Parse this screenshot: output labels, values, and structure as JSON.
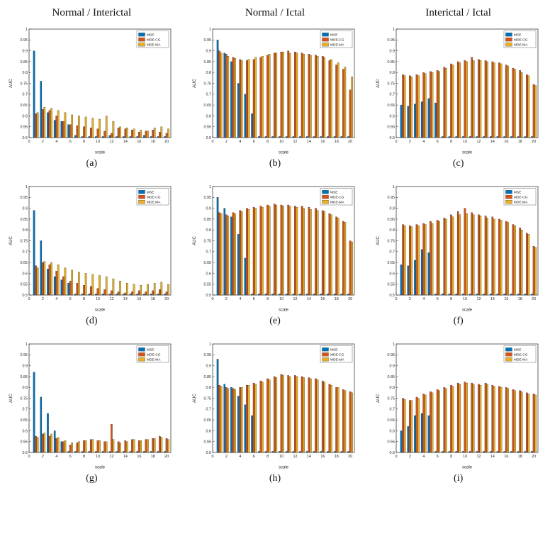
{
  "figure": {
    "column_titles": [
      "Normal / Interictal",
      "Normal / Ictal",
      "Interictal / Ictal"
    ],
    "subplot_labels": [
      "(a)",
      "(b)",
      "(c)",
      "(d)",
      "(e)",
      "(f)",
      "(g)",
      "(h)",
      "(i)"
    ]
  },
  "colors": {
    "mse": "#0072BD",
    "mde_cg": "#D95319",
    "mde_ma": "#EDB120",
    "axis": "#262626"
  },
  "legend_labels": [
    "MSE",
    "MDE-CG",
    "MDE-MA"
  ],
  "chart_data": [
    {
      "id": "a",
      "type": "bar",
      "title": "Normal / Interictal",
      "xlabel": "scale",
      "ylabel": "AUC",
      "xlim": [
        0,
        20.6
      ],
      "ylim": [
        0.5,
        1
      ],
      "grid": false,
      "legend_position": "top-right",
      "x": [
        1,
        2,
        3,
        4,
        5,
        6,
        7,
        8,
        9,
        10,
        11,
        12,
        13,
        14,
        15,
        16,
        17,
        18,
        19,
        20
      ],
      "legend": [
        "MSE",
        "MDE-CG",
        "MDE-MA"
      ],
      "series": [
        {
          "name": "MSE",
          "values": [
            0.9,
            0.76,
            0.615,
            0.58,
            0.575,
            0.56,
            0.51,
            0.505,
            0.505,
            0.505,
            0.505,
            0.51,
            0.505,
            0.505,
            0.505,
            0.505,
            0.51,
            0.505,
            0.505,
            0.505
          ]
        },
        {
          "name": "MDE-CG",
          "values": [
            0.61,
            0.63,
            0.625,
            0.6,
            0.575,
            0.56,
            0.555,
            0.55,
            0.545,
            0.54,
            0.53,
            0.52,
            0.545,
            0.54,
            0.535,
            0.525,
            0.53,
            0.535,
            0.525,
            0.52
          ]
        },
        {
          "name": "MDE-MA",
          "values": [
            0.615,
            0.64,
            0.635,
            0.625,
            0.615,
            0.605,
            0.6,
            0.595,
            0.59,
            0.585,
            0.6,
            0.575,
            0.55,
            0.545,
            0.54,
            0.535,
            0.53,
            0.545,
            0.55,
            0.54
          ]
        }
      ]
    },
    {
      "id": "b",
      "type": "bar",
      "title": "Normal / Ictal",
      "xlabel": "scale",
      "ylabel": "AUC",
      "xlim": [
        0,
        20.6
      ],
      "ylim": [
        0.5,
        1
      ],
      "grid": false,
      "legend_position": "top-right",
      "x": [
        1,
        2,
        3,
        4,
        5,
        6,
        7,
        8,
        9,
        10,
        11,
        12,
        13,
        14,
        15,
        16,
        17,
        18,
        19,
        20
      ],
      "legend": [
        "MSE",
        "MDE-CG",
        "MDE-MA"
      ],
      "series": [
        {
          "name": "MSE",
          "values": [
            0.95,
            0.89,
            0.85,
            0.75,
            0.7,
            0.61,
            0.505,
            0.505,
            0.505,
            0.505,
            0.505,
            0.505,
            0.505,
            0.505,
            0.505,
            0.505,
            0.505,
            0.505,
            0.505,
            0.505
          ]
        },
        {
          "name": "MDE-CG",
          "values": [
            0.9,
            0.885,
            0.87,
            0.86,
            0.855,
            0.86,
            0.87,
            0.88,
            0.89,
            0.895,
            0.9,
            0.895,
            0.89,
            0.885,
            0.88,
            0.875,
            0.855,
            0.835,
            0.815,
            0.72
          ]
        },
        {
          "name": "MDE-MA",
          "values": [
            0.89,
            0.875,
            0.865,
            0.855,
            0.86,
            0.87,
            0.875,
            0.885,
            0.89,
            0.895,
            0.89,
            0.89,
            0.885,
            0.88,
            0.875,
            0.87,
            0.86,
            0.845,
            0.825,
            0.78
          ]
        }
      ]
    },
    {
      "id": "c",
      "type": "bar",
      "title": "Interictal / Ictal",
      "xlabel": "scale",
      "ylabel": "AUC",
      "xlim": [
        0,
        20.6
      ],
      "ylim": [
        0.5,
        1
      ],
      "grid": false,
      "legend_position": "top-right",
      "x": [
        1,
        2,
        3,
        4,
        5,
        6,
        7,
        8,
        9,
        10,
        11,
        12,
        13,
        14,
        15,
        16,
        17,
        18,
        19,
        20
      ],
      "legend": [
        "MSE",
        "MDE-CG",
        "MDE-MA"
      ],
      "series": [
        {
          "name": "MSE",
          "values": [
            0.65,
            0.645,
            0.655,
            0.665,
            0.68,
            0.66,
            0.505,
            0.505,
            0.505,
            0.505,
            0.505,
            0.505,
            0.505,
            0.505,
            0.505,
            0.505,
            0.505,
            0.505,
            0.505,
            0.505
          ]
        },
        {
          "name": "MDE-CG",
          "values": [
            0.79,
            0.785,
            0.79,
            0.8,
            0.805,
            0.81,
            0.825,
            0.84,
            0.85,
            0.855,
            0.87,
            0.86,
            0.855,
            0.85,
            0.845,
            0.835,
            0.82,
            0.81,
            0.79,
            0.745
          ]
        },
        {
          "name": "MDE-MA",
          "values": [
            0.785,
            0.78,
            0.785,
            0.795,
            0.8,
            0.805,
            0.82,
            0.835,
            0.845,
            0.85,
            0.855,
            0.855,
            0.85,
            0.845,
            0.84,
            0.83,
            0.815,
            0.8,
            0.785,
            0.74
          ]
        }
      ]
    },
    {
      "id": "d",
      "type": "bar",
      "title": "Normal / Interictal",
      "xlabel": "scale",
      "ylabel": "AUC",
      "xlim": [
        0,
        20.6
      ],
      "ylim": [
        0.5,
        1
      ],
      "grid": false,
      "legend_position": "top-right",
      "x": [
        1,
        2,
        3,
        4,
        5,
        6,
        7,
        8,
        9,
        10,
        11,
        12,
        13,
        14,
        15,
        16,
        17,
        18,
        19,
        20
      ],
      "legend": [
        "MSE",
        "MDE-CG",
        "MDE-MA"
      ],
      "series": [
        {
          "name": "MSE",
          "values": [
            0.89,
            0.75,
            0.62,
            0.585,
            0.57,
            0.555,
            0.505,
            0.505,
            0.505,
            0.505,
            0.505,
            0.505,
            0.505,
            0.505,
            0.505,
            0.505,
            0.505,
            0.505,
            0.505,
            0.505
          ]
        },
        {
          "name": "MDE-CG",
          "values": [
            0.635,
            0.65,
            0.64,
            0.61,
            0.585,
            0.565,
            0.555,
            0.545,
            0.54,
            0.53,
            0.525,
            0.52,
            0.515,
            0.51,
            0.515,
            0.52,
            0.515,
            0.52,
            0.525,
            0.515
          ]
        },
        {
          "name": "MDE-MA",
          "values": [
            0.625,
            0.655,
            0.65,
            0.64,
            0.625,
            0.615,
            0.605,
            0.6,
            0.595,
            0.59,
            0.585,
            0.575,
            0.565,
            0.555,
            0.55,
            0.545,
            0.55,
            0.555,
            0.56,
            0.55
          ]
        }
      ]
    },
    {
      "id": "e",
      "type": "bar",
      "title": "Normal / Ictal",
      "xlabel": "scale",
      "ylabel": "AUC",
      "xlim": [
        0,
        20.6
      ],
      "ylim": [
        0.5,
        1
      ],
      "grid": false,
      "legend_position": "top-right",
      "x": [
        1,
        2,
        3,
        4,
        5,
        6,
        7,
        8,
        9,
        10,
        11,
        12,
        13,
        14,
        15,
        16,
        17,
        18,
        19,
        20
      ],
      "legend": [
        "MSE",
        "MDE-CG",
        "MDE-MA"
      ],
      "series": [
        {
          "name": "MSE",
          "values": [
            0.95,
            0.9,
            0.86,
            0.78,
            0.67,
            0.505,
            0.505,
            0.505,
            0.505,
            0.505,
            0.505,
            0.505,
            0.505,
            0.505,
            0.505,
            0.505,
            0.505,
            0.505,
            0.505,
            0.505
          ]
        },
        {
          "name": "MDE-CG",
          "values": [
            0.88,
            0.87,
            0.88,
            0.89,
            0.9,
            0.905,
            0.91,
            0.915,
            0.92,
            0.915,
            0.915,
            0.91,
            0.91,
            0.905,
            0.9,
            0.89,
            0.875,
            0.86,
            0.84,
            0.75
          ]
        },
        {
          "name": "MDE-MA",
          "values": [
            0.875,
            0.865,
            0.875,
            0.885,
            0.895,
            0.9,
            0.905,
            0.91,
            0.915,
            0.91,
            0.91,
            0.905,
            0.9,
            0.895,
            0.89,
            0.885,
            0.87,
            0.855,
            0.835,
            0.745
          ]
        }
      ]
    },
    {
      "id": "f",
      "type": "bar",
      "title": "Interictal / Ictal",
      "xlabel": "scale",
      "ylabel": "AUC",
      "xlim": [
        0,
        20.6
      ],
      "ylim": [
        0.5,
        1
      ],
      "grid": false,
      "legend_position": "top-right",
      "x": [
        1,
        2,
        3,
        4,
        5,
        6,
        7,
        8,
        9,
        10,
        11,
        12,
        13,
        14,
        15,
        16,
        17,
        18,
        19,
        20
      ],
      "legend": [
        "MSE",
        "MDE-CG",
        "MDE-MA"
      ],
      "series": [
        {
          "name": "MSE",
          "values": [
            0.64,
            0.635,
            0.66,
            0.71,
            0.695,
            0.505,
            0.505,
            0.505,
            0.505,
            0.505,
            0.505,
            0.505,
            0.505,
            0.505,
            0.505,
            0.505,
            0.505,
            0.505,
            0.505,
            0.505
          ]
        },
        {
          "name": "MDE-CG",
          "values": [
            0.825,
            0.82,
            0.825,
            0.83,
            0.84,
            0.845,
            0.855,
            0.87,
            0.885,
            0.9,
            0.88,
            0.87,
            0.865,
            0.86,
            0.85,
            0.84,
            0.825,
            0.81,
            0.785,
            0.725
          ]
        },
        {
          "name": "MDE-MA",
          "values": [
            0.82,
            0.815,
            0.82,
            0.825,
            0.83,
            0.84,
            0.85,
            0.86,
            0.87,
            0.875,
            0.87,
            0.865,
            0.855,
            0.85,
            0.845,
            0.835,
            0.82,
            0.8,
            0.78,
            0.72
          ]
        }
      ]
    },
    {
      "id": "g",
      "type": "bar",
      "title": "Normal / Interictal",
      "xlabel": "scale",
      "ylabel": "AUC",
      "xlim": [
        0,
        20.6
      ],
      "ylim": [
        0.5,
        1
      ],
      "grid": false,
      "legend_position": "top-right",
      "x": [
        1,
        2,
        3,
        4,
        5,
        6,
        7,
        8,
        9,
        10,
        11,
        12,
        13,
        14,
        15,
        16,
        17,
        18,
        19,
        20
      ],
      "legend": [
        "MSE",
        "MDE-CG",
        "MDE-MA"
      ],
      "series": [
        {
          "name": "MSE",
          "values": [
            0.87,
            0.755,
            0.68,
            0.6,
            0.55,
            0.505,
            0.505,
            0.505,
            0.505,
            0.505,
            0.505,
            0.505,
            0.505,
            0.505,
            0.505,
            0.505,
            0.505,
            0.505,
            0.505,
            0.505
          ]
        },
        {
          "name": "MDE-CG",
          "values": [
            0.575,
            0.585,
            0.575,
            0.565,
            0.55,
            0.535,
            0.545,
            0.555,
            0.56,
            0.555,
            0.55,
            0.63,
            0.55,
            0.555,
            0.56,
            0.555,
            0.56,
            0.565,
            0.575,
            0.565
          ]
        },
        {
          "name": "MDE-MA",
          "values": [
            0.57,
            0.59,
            0.585,
            0.57,
            0.555,
            0.545,
            0.55,
            0.555,
            0.56,
            0.555,
            0.55,
            0.56,
            0.545,
            0.55,
            0.56,
            0.555,
            0.56,
            0.565,
            0.57,
            0.56
          ]
        }
      ]
    },
    {
      "id": "h",
      "type": "bar",
      "title": "Normal / Ictal",
      "xlabel": "scale",
      "ylabel": "AUC",
      "xlim": [
        0,
        20.6
      ],
      "ylim": [
        0.5,
        1
      ],
      "grid": false,
      "legend_position": "top-right",
      "x": [
        1,
        2,
        3,
        4,
        5,
        6,
        7,
        8,
        9,
        10,
        11,
        12,
        13,
        14,
        15,
        16,
        17,
        18,
        19,
        20
      ],
      "legend": [
        "MSE",
        "MDE-CG",
        "MDE-MA"
      ],
      "series": [
        {
          "name": "MSE",
          "values": [
            0.93,
            0.815,
            0.8,
            0.76,
            0.72,
            0.67,
            0.505,
            0.505,
            0.505,
            0.505,
            0.505,
            0.505,
            0.505,
            0.505,
            0.505,
            0.505,
            0.505,
            0.505,
            0.505,
            0.505
          ]
        },
        {
          "name": "MDE-CG",
          "values": [
            0.81,
            0.8,
            0.795,
            0.8,
            0.81,
            0.82,
            0.83,
            0.84,
            0.85,
            0.86,
            0.855,
            0.855,
            0.85,
            0.845,
            0.84,
            0.83,
            0.815,
            0.8,
            0.79,
            0.78
          ]
        },
        {
          "name": "MDE-MA",
          "values": [
            0.805,
            0.795,
            0.79,
            0.8,
            0.81,
            0.815,
            0.825,
            0.835,
            0.845,
            0.855,
            0.85,
            0.85,
            0.845,
            0.84,
            0.835,
            0.825,
            0.81,
            0.8,
            0.785,
            0.775
          ]
        }
      ]
    },
    {
      "id": "i",
      "type": "bar",
      "title": "Interictal / Ictal",
      "xlabel": "scale",
      "ylabel": "AUC",
      "xlim": [
        0,
        20.6
      ],
      "ylim": [
        0.5,
        1
      ],
      "grid": false,
      "legend_position": "top-right",
      "x": [
        1,
        2,
        3,
        4,
        5,
        6,
        7,
        8,
        9,
        10,
        11,
        12,
        13,
        14,
        15,
        16,
        17,
        18,
        19,
        20
      ],
      "legend": [
        "MSE",
        "MDE-CG",
        "MDE-MA"
      ],
      "series": [
        {
          "name": "MSE",
          "values": [
            0.6,
            0.62,
            0.67,
            0.68,
            0.67,
            0.505,
            0.505,
            0.505,
            0.505,
            0.505,
            0.505,
            0.505,
            0.505,
            0.505,
            0.505,
            0.505,
            0.505,
            0.505,
            0.505,
            0.505
          ]
        },
        {
          "name": "MDE-CG",
          "values": [
            0.75,
            0.74,
            0.755,
            0.77,
            0.78,
            0.79,
            0.8,
            0.81,
            0.82,
            0.825,
            0.82,
            0.815,
            0.82,
            0.81,
            0.805,
            0.8,
            0.79,
            0.785,
            0.775,
            0.77
          ]
        },
        {
          "name": "MDE-MA",
          "values": [
            0.745,
            0.74,
            0.75,
            0.765,
            0.775,
            0.785,
            0.795,
            0.805,
            0.815,
            0.82,
            0.815,
            0.81,
            0.815,
            0.805,
            0.8,
            0.795,
            0.785,
            0.78,
            0.77,
            0.765
          ]
        }
      ]
    }
  ]
}
